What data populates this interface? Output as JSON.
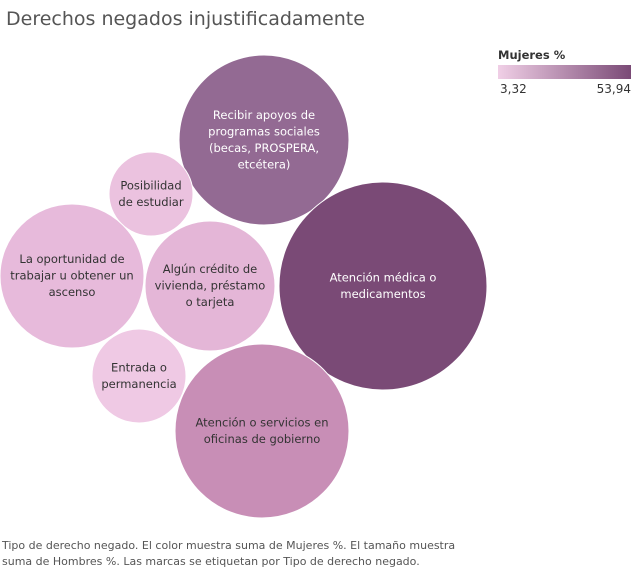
{
  "title": "Derechos negados injustificadamente",
  "legend": {
    "title": "Mujeres %",
    "min_label": "3,32",
    "max_label": "53,94",
    "color_low": "#f0cfe6",
    "color_high": "#7a4a76"
  },
  "caption": "Tipo de derecho negado.  El color muestra suma de Mujeres %.  El tamaño muestra suma de Hombres %.  Las marcas se etiquetan por Tipo de derecho negado.",
  "chart_data": {
    "type": "bubble",
    "title": "Derechos negados injustificadamente",
    "color_measure": "Mujeres %",
    "size_measure": "Hombres %",
    "label_field": "Tipo de derecho negado",
    "color_range": [
      3.32,
      53.94
    ],
    "bubbles": [
      {
        "key": "recibir-apoyos",
        "label": [
          "Recibir apoyos de",
          "programas sociales",
          "(becas, PROSPERA,",
          "etcétera)"
        ],
        "fill": "#936a93",
        "text_color": "#ffffff"
      },
      {
        "key": "posibilidad-estudiar",
        "label": [
          "Posibilidad",
          "de estudiar"
        ],
        "fill": "#ebc2df",
        "text_color": "#333333"
      },
      {
        "key": "oportunidad-trabajar",
        "label": [
          "La oportunidad de",
          "trabajar u obtener un",
          "ascenso"
        ],
        "fill": "#e7badb",
        "text_color": "#333333"
      },
      {
        "key": "credito-vivienda",
        "label": [
          "Algún crédito de",
          "vivienda, préstamo",
          "o tarjeta"
        ],
        "fill": "#e4b6d7",
        "text_color": "#333333"
      },
      {
        "key": "atencion-medica",
        "label": [
          "Atención médica o",
          "medicamentos"
        ],
        "fill": "#7a4a76",
        "text_color": "#ffffff"
      },
      {
        "key": "entrada-permanencia",
        "label": [
          "Entrada o",
          "permanencia"
        ],
        "fill": "#efc9e4",
        "text_color": "#333333"
      },
      {
        "key": "atencion-oficinas",
        "label": [
          "Atención o servicios en",
          "oficinas de gobierno"
        ],
        "fill": "#c88eb6",
        "text_color": "#333333"
      }
    ]
  }
}
